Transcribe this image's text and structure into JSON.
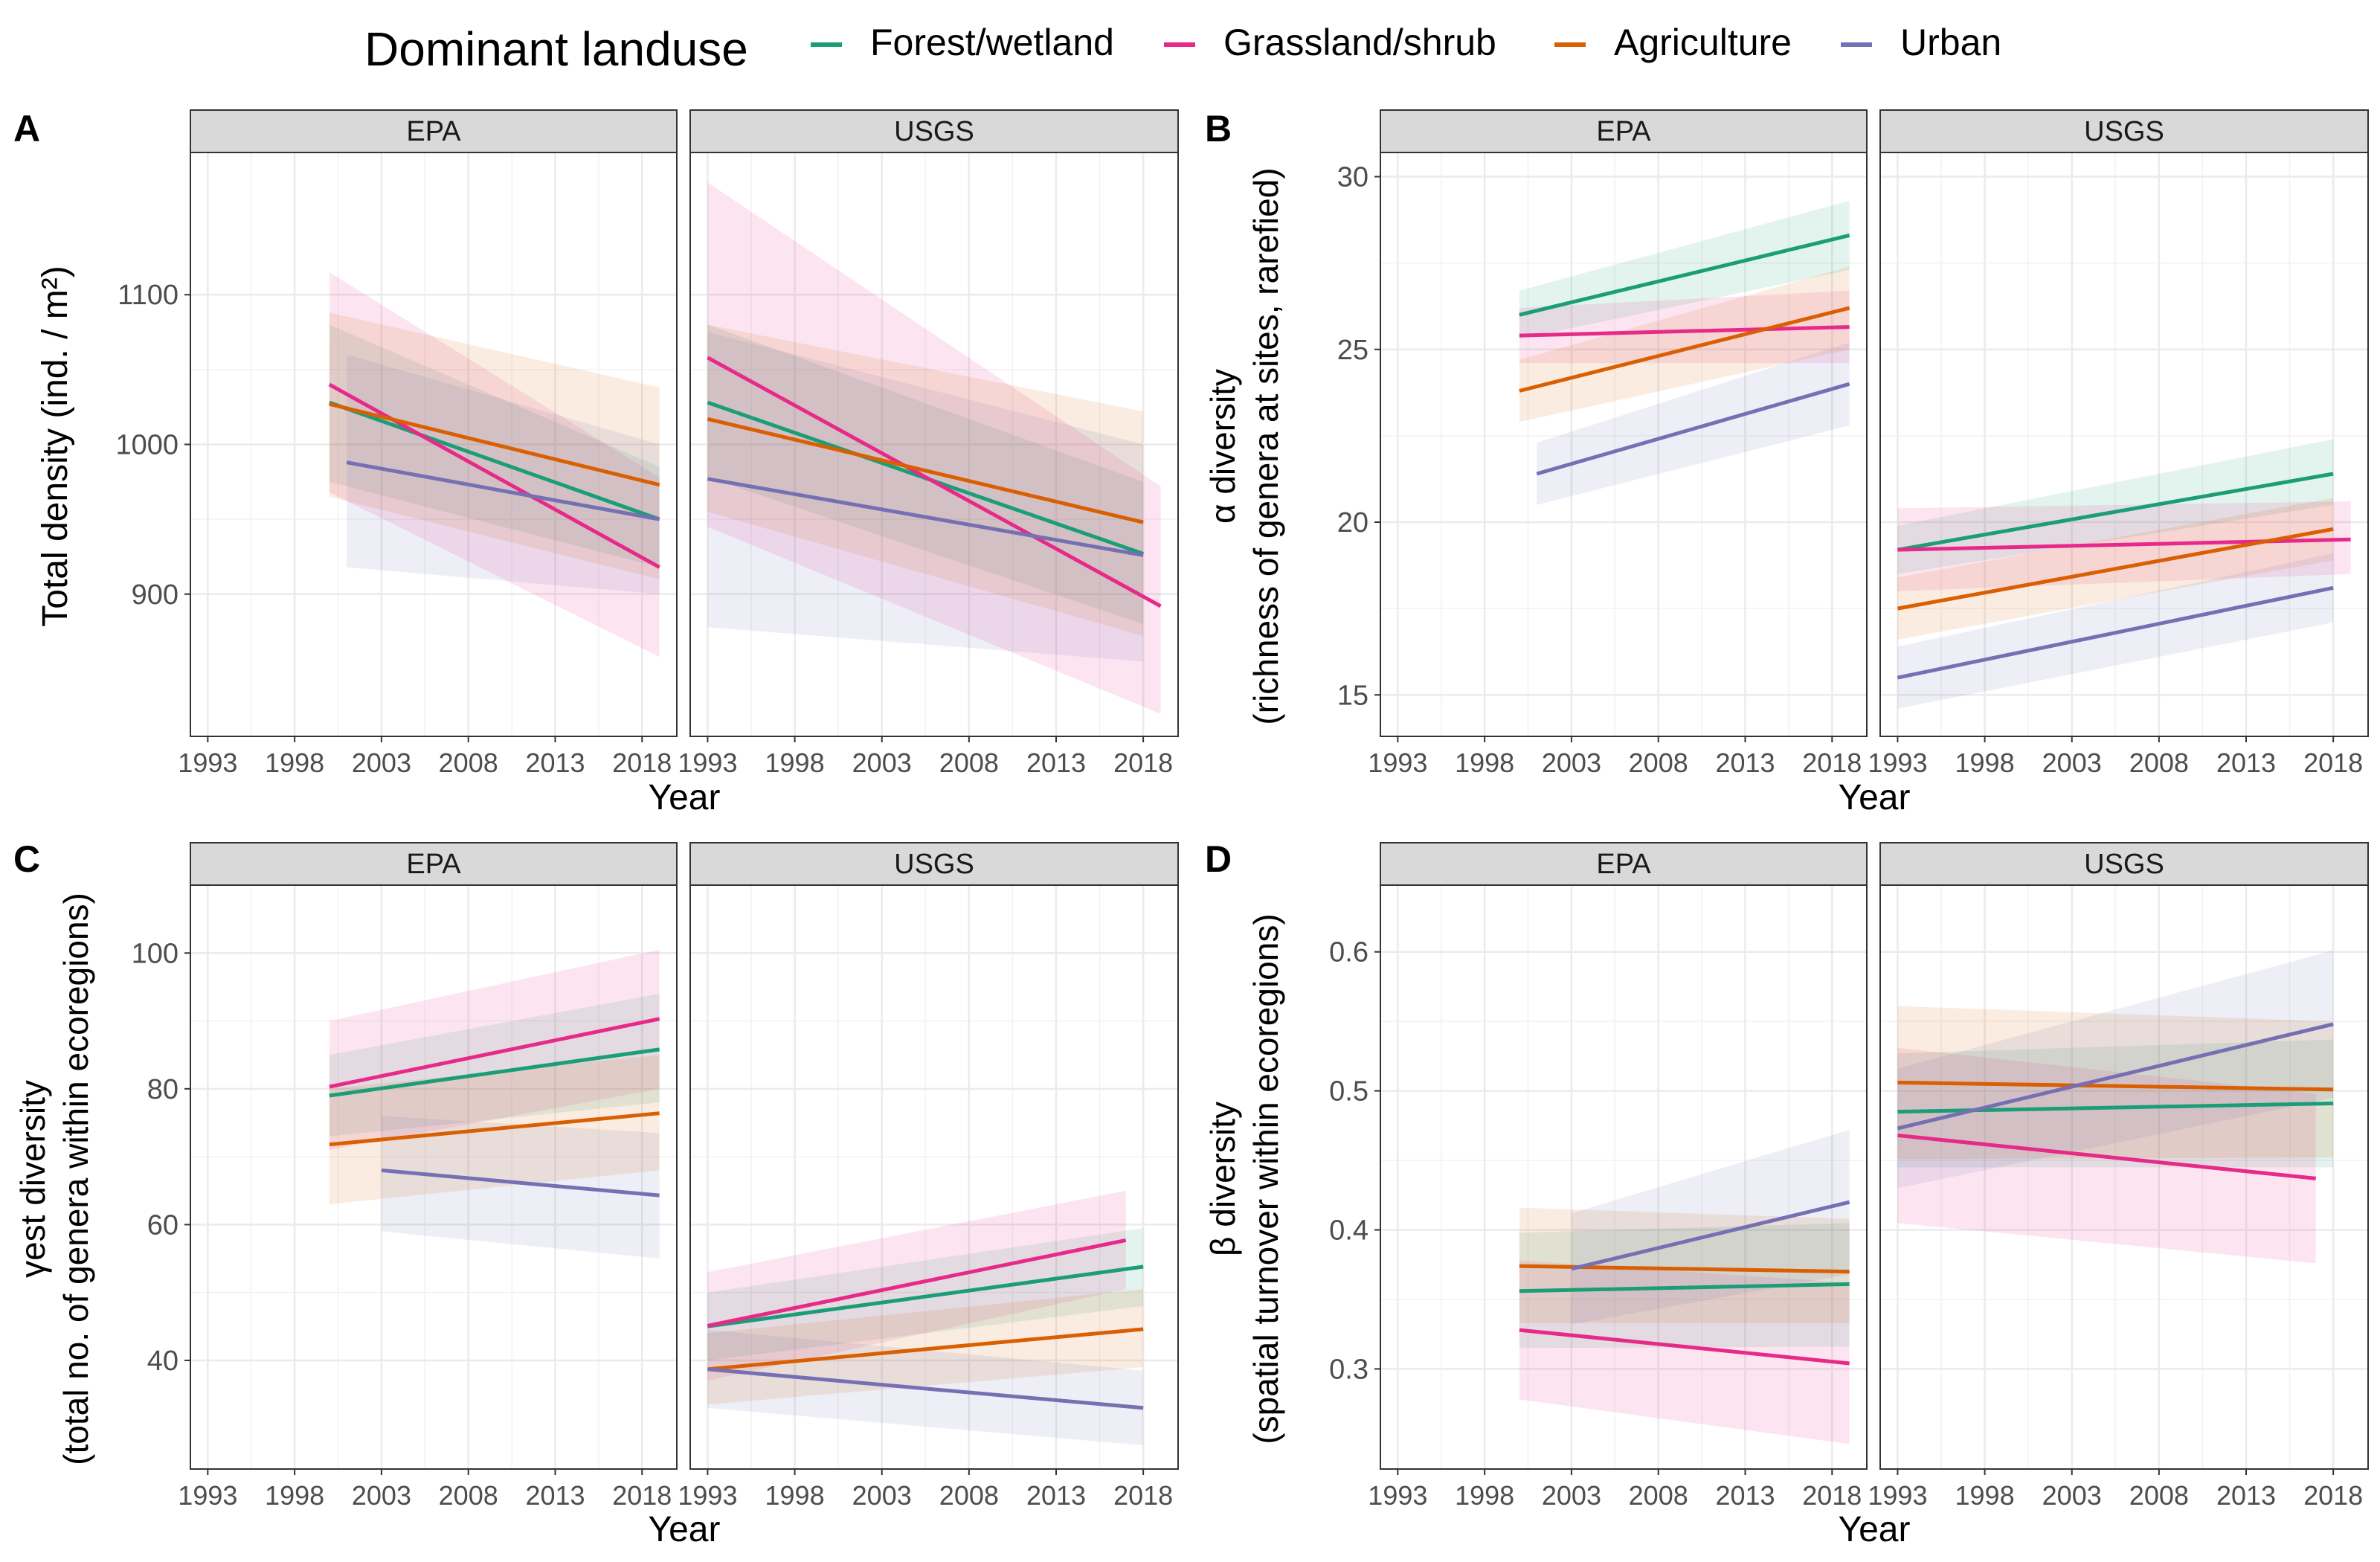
{
  "legend": {
    "title": "Dominant landuse",
    "items": [
      {
        "name": "Forest/wetland",
        "color": "#1b9e77"
      },
      {
        "name": "Grassland/shrub",
        "color": "#e7298a"
      },
      {
        "name": "Agriculture",
        "color": "#d95f02"
      },
      {
        "name": "Urban",
        "color": "#7570b3"
      }
    ]
  },
  "chart_data": [
    {
      "type": "line",
      "label": "A",
      "ylabel": "Total density (ind. / m²)",
      "xlabel": "Year",
      "ylim": [
        805,
        1195
      ],
      "yticks": [
        900,
        1000,
        1100
      ],
      "xticks": [
        1993,
        1998,
        2003,
        2008,
        2013,
        2018
      ],
      "panels": [
        {
          "name": "EPA",
          "xlim": [
            1992,
            2020
          ],
          "series": [
            {
              "name": "Forest/wetland",
              "x": [
                2000,
                2019
              ],
              "y": [
                1028,
                950
              ],
              "band_lo": [
                975,
                918
              ],
              "band_hi": [
                1080,
                985
              ]
            },
            {
              "name": "Grassland/shrub",
              "x": [
                2000,
                2019
              ],
              "y": [
                1040,
                918
              ],
              "band_lo": [
                968,
                858
              ],
              "band_hi": [
                1115,
                978
              ]
            },
            {
              "name": "Agriculture",
              "x": [
                2000,
                2019
              ],
              "y": [
                1027,
                973
              ],
              "band_lo": [
                965,
                910
              ],
              "band_hi": [
                1088,
                1038
              ]
            },
            {
              "name": "Urban",
              "x": [
                2001,
                2019
              ],
              "y": [
                988,
                950
              ],
              "band_lo": [
                918,
                900
              ],
              "band_hi": [
                1060,
                1000
              ]
            }
          ]
        },
        {
          "name": "USGS",
          "xlim": [
            1992,
            2020
          ],
          "series": [
            {
              "name": "Forest/wetland",
              "x": [
                1993,
                2018
              ],
              "y": [
                1028,
                927
              ],
              "band_lo": [
                978,
                880
              ],
              "band_hi": [
                1080,
                975
              ]
            },
            {
              "name": "Grassland/shrub",
              "x": [
                1993,
                2019
              ],
              "y": [
                1058,
                892
              ],
              "band_lo": [
                945,
                820
              ],
              "band_hi": [
                1175,
                972
              ]
            },
            {
              "name": "Agriculture",
              "x": [
                1993,
                2018
              ],
              "y": [
                1017,
                948
              ],
              "band_lo": [
                955,
                872
              ],
              "band_hi": [
                1080,
                1022
              ]
            },
            {
              "name": "Urban",
              "x": [
                1993,
                2018
              ],
              "y": [
                977,
                926
              ],
              "band_lo": [
                878,
                855
              ],
              "band_hi": [
                1075,
                1000
              ]
            }
          ]
        }
      ]
    },
    {
      "type": "line",
      "label": "B",
      "ylabel": "α diversity (richness of genera at sites, rarefied)",
      "xlabel": "Year",
      "ylim": [
        13.8,
        30.7
      ],
      "yticks": [
        15,
        20,
        25,
        30
      ],
      "xticks": [
        1993,
        1998,
        2003,
        2008,
        2013,
        2018
      ],
      "panels": [
        {
          "name": "EPA",
          "xlim": [
            1992,
            2020
          ],
          "series": [
            {
              "name": "Forest/wetland",
              "x": [
                2000,
                2019
              ],
              "y": [
                26.0,
                28.3
              ],
              "band_lo": [
                25.3,
                27.3
              ],
              "band_hi": [
                26.7,
                29.3
              ]
            },
            {
              "name": "Grassland/shrub",
              "x": [
                2000,
                2019
              ],
              "y": [
                25.4,
                25.65
              ],
              "band_lo": [
                24.6,
                24.6
              ],
              "band_hi": [
                26.2,
                26.7
              ]
            },
            {
              "name": "Agriculture",
              "x": [
                2000,
                2019
              ],
              "y": [
                23.8,
                26.2
              ],
              "band_lo": [
                22.9,
                25.0
              ],
              "band_hi": [
                24.7,
                27.4
              ]
            },
            {
              "name": "Urban",
              "x": [
                2001,
                2019
              ],
              "y": [
                21.4,
                24.0
              ],
              "band_lo": [
                20.5,
                22.8
              ],
              "band_hi": [
                22.3,
                25.2
              ]
            }
          ]
        },
        {
          "name": "USGS",
          "xlim": [
            1992,
            2020
          ],
          "series": [
            {
              "name": "Forest/wetland",
              "x": [
                1993,
                2018
              ],
              "y": [
                19.2,
                21.4
              ],
              "band_lo": [
                18.5,
                20.5
              ],
              "band_hi": [
                19.9,
                22.4
              ]
            },
            {
              "name": "Grassland/shrub",
              "x": [
                1993,
                2019
              ],
              "y": [
                19.2,
                19.5
              ],
              "band_lo": [
                18.0,
                18.5
              ],
              "band_hi": [
                20.4,
                20.6
              ]
            },
            {
              "name": "Agriculture",
              "x": [
                1993,
                2018
              ],
              "y": [
                17.5,
                19.8
              ],
              "band_lo": [
                16.6,
                18.9
              ],
              "band_hi": [
                18.4,
                20.7
              ]
            },
            {
              "name": "Urban",
              "x": [
                1993,
                2018
              ],
              "y": [
                15.5,
                18.1
              ],
              "band_lo": [
                14.6,
                17.1
              ],
              "band_hi": [
                16.4,
                19.1
              ]
            }
          ]
        }
      ]
    },
    {
      "type": "line",
      "label": "C",
      "ylabel": "γest diversity (total no. of genera within ecoregions)",
      "xlabel": "Year",
      "ylim": [
        24,
        110
      ],
      "yticks": [
        40,
        60,
        80,
        100
      ],
      "xticks": [
        1993,
        1998,
        2003,
        2008,
        2013,
        2018
      ],
      "panels": [
        {
          "name": "EPA",
          "xlim": [
            1992,
            2020
          ],
          "series": [
            {
              "name": "Forest/wetland",
              "x": [
                2000,
                2019
              ],
              "y": [
                79,
                85.8
              ],
              "band_lo": [
                73,
                78
              ],
              "band_hi": [
                85,
                94
              ]
            },
            {
              "name": "Grassland/shrub",
              "x": [
                2000,
                2019
              ],
              "y": [
                80.3,
                90.3
              ],
              "band_lo": [
                71,
                80
              ],
              "band_hi": [
                90,
                100.5
              ]
            },
            {
              "name": "Agriculture",
              "x": [
                2000,
                2019
              ],
              "y": [
                71.8,
                76.4
              ],
              "band_lo": [
                63,
                68
              ],
              "band_hi": [
                80,
                85
              ]
            },
            {
              "name": "Urban",
              "x": [
                2003,
                2019
              ],
              "y": [
                68,
                64.3
              ],
              "band_lo": [
                59,
                55
              ],
              "band_hi": [
                76,
                73.5
              ]
            }
          ]
        },
        {
          "name": "USGS",
          "xlim": [
            1992,
            2020
          ],
          "series": [
            {
              "name": "Forest/wetland",
              "x": [
                1993,
                2018
              ],
              "y": [
                45,
                53.8
              ],
              "band_lo": [
                40,
                48
              ],
              "band_hi": [
                50,
                59.5
              ]
            },
            {
              "name": "Grassland/shrub",
              "x": [
                1993,
                2017
              ],
              "y": [
                45.1,
                57.7
              ],
              "band_lo": [
                37,
                50.5
              ],
              "band_hi": [
                53,
                65
              ]
            },
            {
              "name": "Agriculture",
              "x": [
                1993,
                2018
              ],
              "y": [
                38.7,
                44.6
              ],
              "band_lo": [
                33.5,
                39
              ],
              "band_hi": [
                44,
                50.5
              ]
            },
            {
              "name": "Urban",
              "x": [
                1993,
                2018
              ],
              "y": [
                38.7,
                33
              ],
              "band_lo": [
                33,
                27.5
              ],
              "band_hi": [
                44.5,
                38.5
              ]
            }
          ]
        }
      ]
    },
    {
      "type": "line",
      "label": "D",
      "ylabel": "β diversity (spatial turnover within ecoregions)",
      "xlabel": "Year",
      "ylim": [
        0.228,
        0.648
      ],
      "yticks": [
        0.3,
        0.4,
        0.5,
        0.6
      ],
      "xticks": [
        1993,
        1998,
        2003,
        2008,
        2013,
        2018
      ],
      "panels": [
        {
          "name": "EPA",
          "xlim": [
            1992,
            2020
          ],
          "series": [
            {
              "name": "Forest/wetland",
              "x": [
                2000,
                2019
              ],
              "y": [
                0.356,
                0.361
              ],
              "band_lo": [
                0.315,
                0.316
              ],
              "band_hi": [
                0.398,
                0.405
              ]
            },
            {
              "name": "Grassland/shrub",
              "x": [
                2000,
                2019
              ],
              "y": [
                0.328,
                0.304
              ],
              "band_lo": [
                0.278,
                0.246
              ],
              "band_hi": [
                0.378,
                0.362
              ]
            },
            {
              "name": "Agriculture",
              "x": [
                2000,
                2019
              ],
              "y": [
                0.374,
                0.37
              ],
              "band_lo": [
                0.333,
                0.333
              ],
              "band_hi": [
                0.416,
                0.408
              ]
            },
            {
              "name": "Urban",
              "x": [
                2003,
                2019
              ],
              "y": [
                0.372,
                0.42
              ],
              "band_lo": [
                0.332,
                0.368
              ],
              "band_hi": [
                0.412,
                0.472
              ]
            }
          ]
        },
        {
          "name": "USGS",
          "xlim": [
            1992,
            2020
          ],
          "series": [
            {
              "name": "Forest/wetland",
              "x": [
                1993,
                2018
              ],
              "y": [
                0.485,
                0.491
              ],
              "band_lo": [
                0.445,
                0.445
              ],
              "band_hi": [
                0.527,
                0.537
              ]
            },
            {
              "name": "Grassland/shrub",
              "x": [
                1993,
                2017
              ],
              "y": [
                0.468,
                0.437
              ],
              "band_lo": [
                0.405,
                0.376
              ],
              "band_hi": [
                0.531,
                0.498
              ]
            },
            {
              "name": "Agriculture",
              "x": [
                1993,
                2018
              ],
              "y": [
                0.506,
                0.501
              ],
              "band_lo": [
                0.451,
                0.452
              ],
              "band_hi": [
                0.561,
                0.55
              ]
            },
            {
              "name": "Urban",
              "x": [
                1993,
                2018
              ],
              "y": [
                0.473,
                0.548
              ],
              "band_lo": [
                0.43,
                0.495
              ],
              "band_hi": [
                0.516,
                0.601
              ]
            }
          ]
        }
      ]
    }
  ]
}
